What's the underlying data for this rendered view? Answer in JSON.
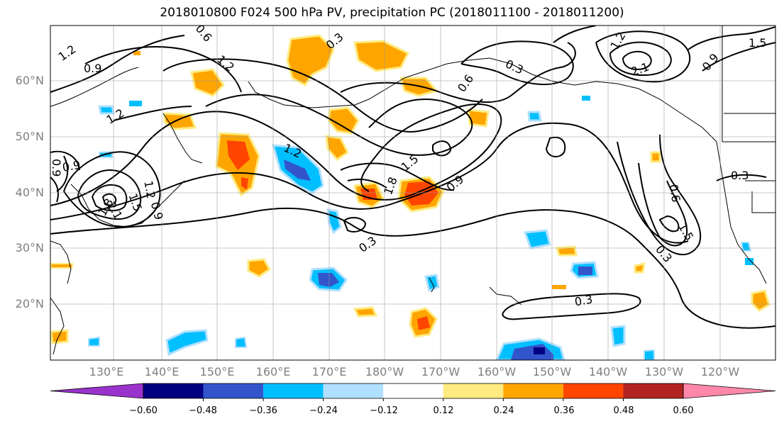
{
  "title": "2018010800 F024 500 hPa PV, precipitation PC (2018011100 - 2018011200)",
  "lat_labels": [
    "60°N",
    "50°N",
    "40°N",
    "30°N",
    "20°N"
  ],
  "lon_labels": [
    "130°E",
    "140°E",
    "150°E",
    "160°E",
    "170°E",
    "180°W",
    "170°W",
    "160°W",
    "150°W",
    "140°W",
    "130°W",
    "120°W"
  ],
  "contour_labels": [
    "1.2",
    "0.9",
    "1.2",
    "1.2",
    "0.6",
    "0.3",
    "0.6",
    "0.3",
    "0.9",
    "1.8",
    "2.1",
    "1.5",
    "1.2",
    "0.9",
    "1.2",
    "1.5",
    "0.9",
    "1.8",
    "0.9",
    "0.3",
    "0.3",
    "0.3",
    "1.2",
    "2.1",
    "0.9",
    "1.5",
    "0.6",
    "1.5",
    "0.3"
  ],
  "colorbar": {
    "ticks": [
      "−0.60",
      "−0.48",
      "−0.36",
      "−0.24",
      "−0.12",
      "0.12",
      "0.24",
      "0.36",
      "0.48",
      "0.60"
    ],
    "colors": [
      "#9933cc",
      "#000080",
      "#3355cc",
      "#00bfff",
      "#b0e0ff",
      "#ffffff",
      "#ffeb80",
      "#ffa500",
      "#ff4500",
      "#b22222",
      "#ff88aa"
    ]
  }
}
